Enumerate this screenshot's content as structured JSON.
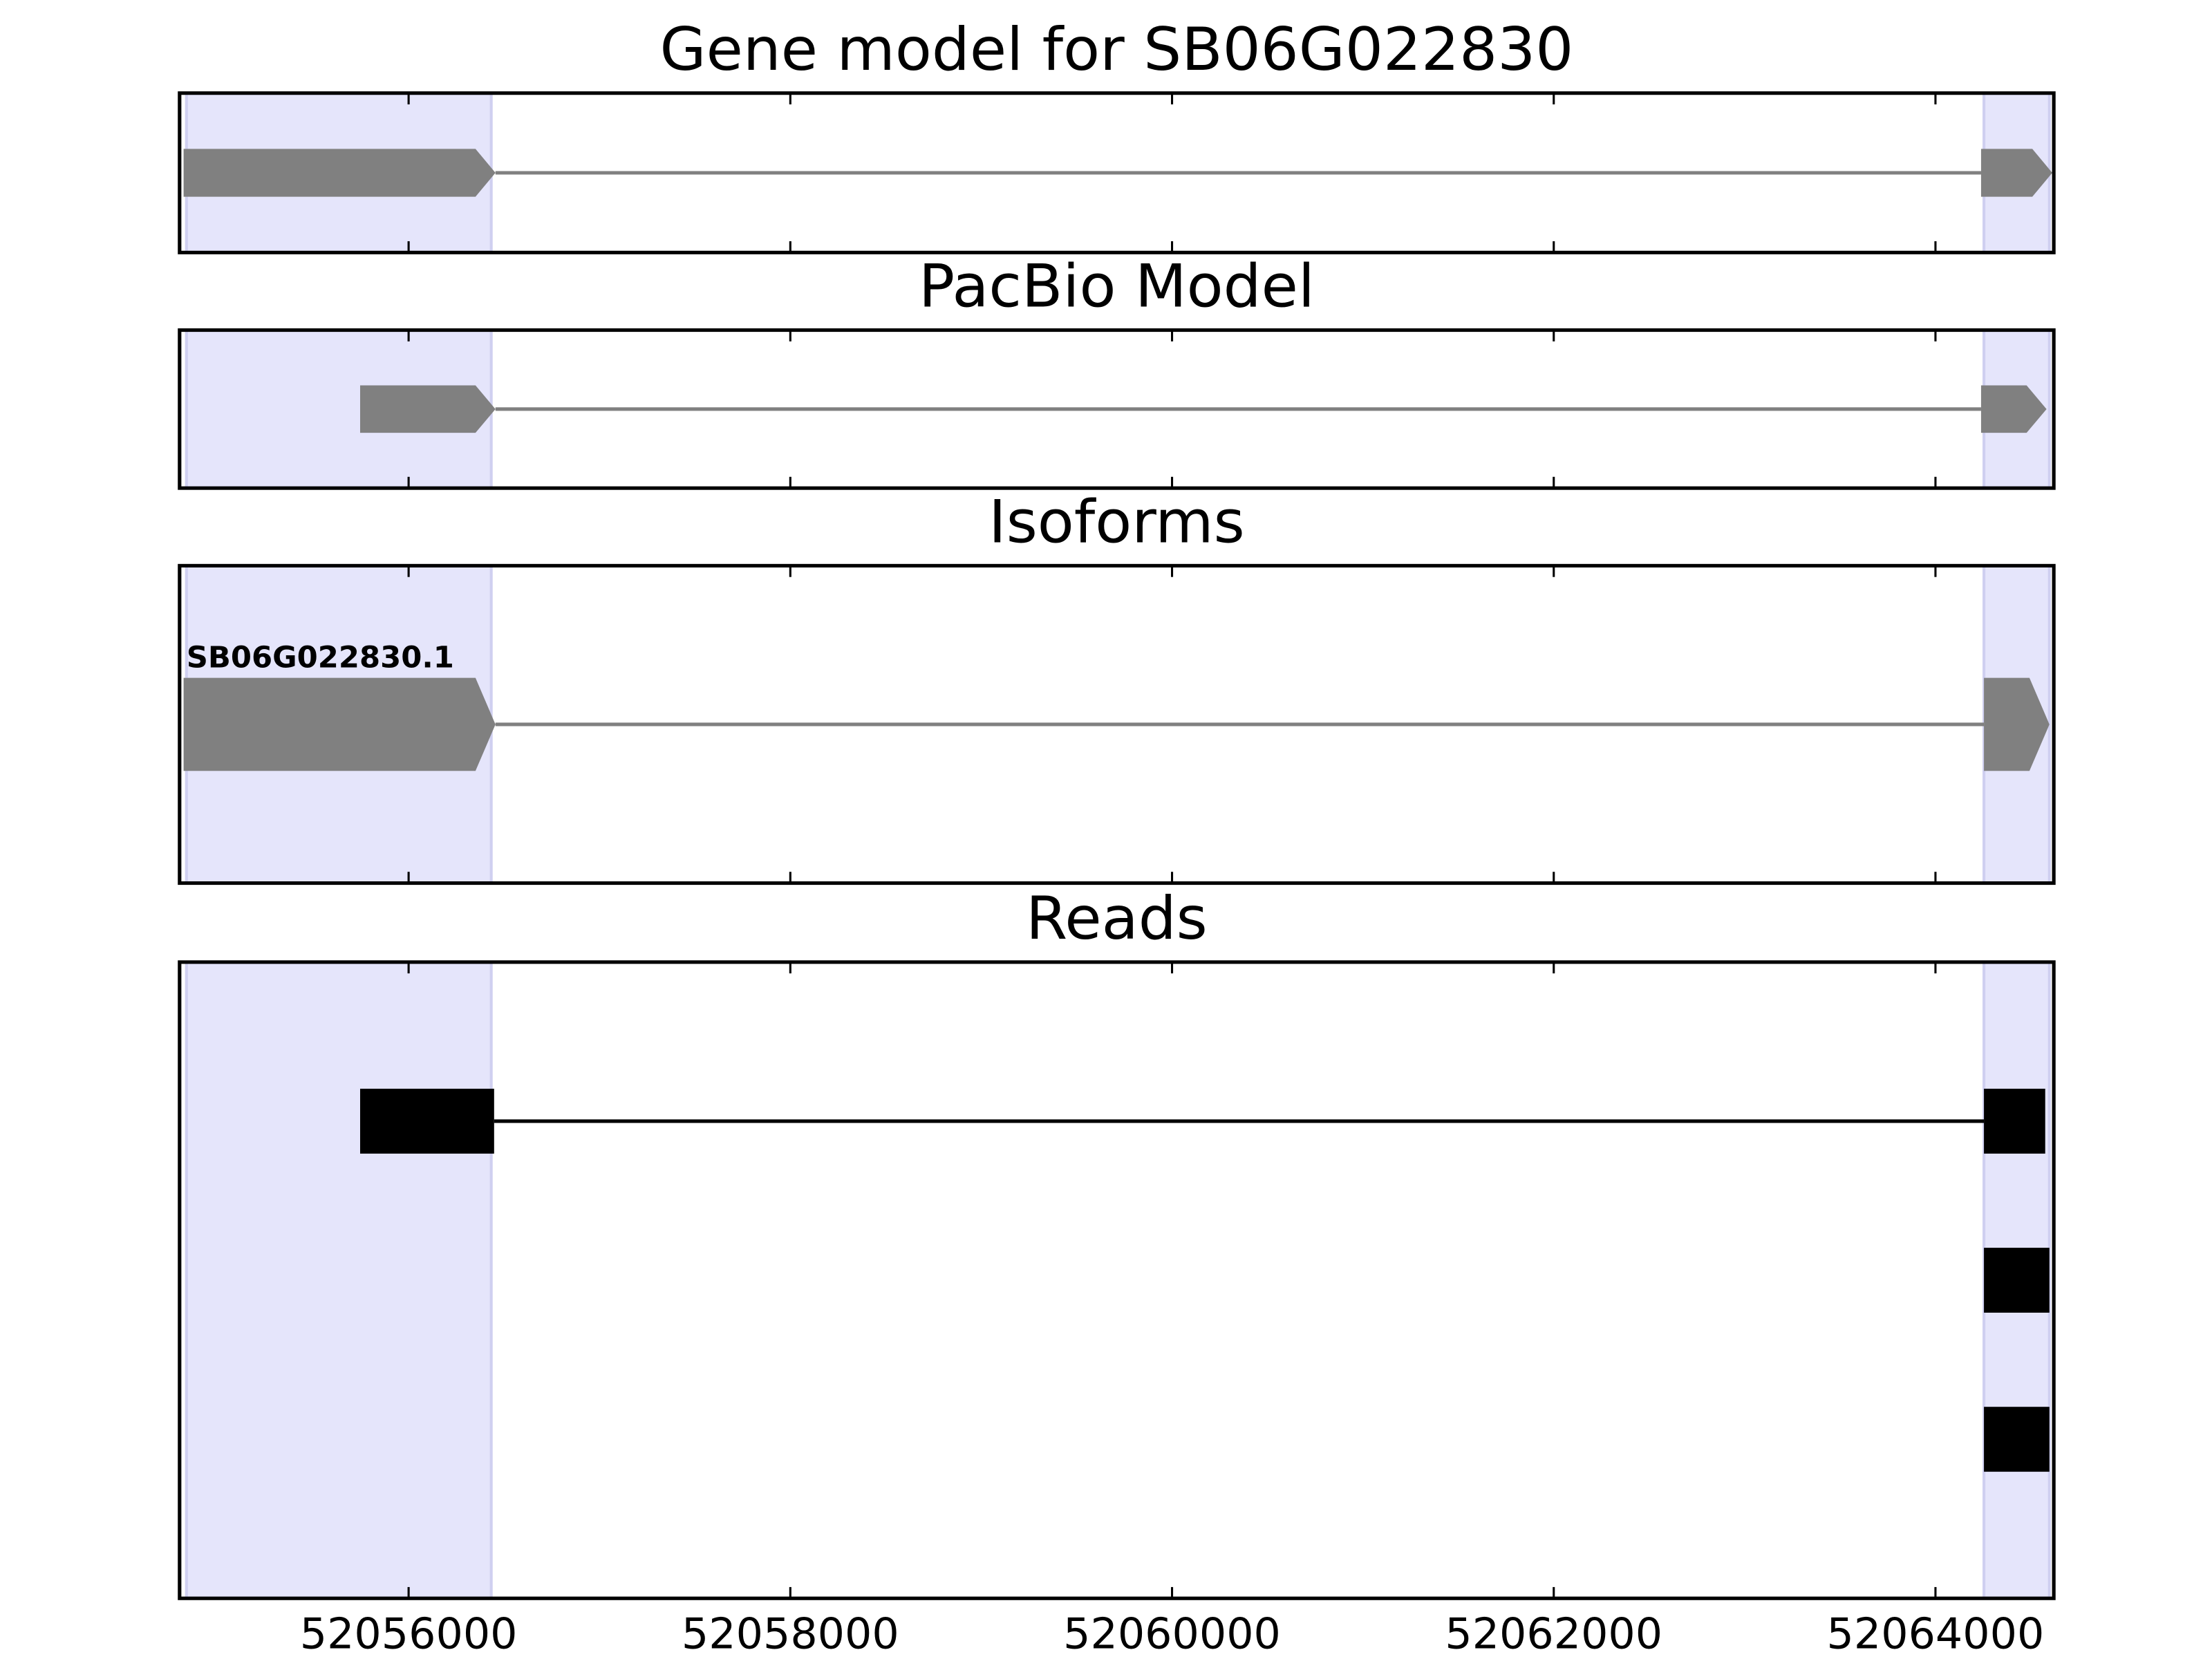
{
  "chart_data": [
    {
      "type": "gene",
      "title": "Gene model for SB06G022830",
      "color": "#808080",
      "xlim": [
        52054800,
        52064620
      ],
      "xticks": [
        52056000,
        52058000,
        52060000,
        52062000,
        52064000
      ],
      "shade_color": "#e5e5fb",
      "shaded_regions": [
        [
          52054836,
          52056433
        ],
        [
          52064254,
          52064597
        ]
      ],
      "features": [
        {
          "exons": [
            [
              52054821,
              52056455
            ],
            [
              52064239,
              52064612
            ]
          ]
        }
      ]
    },
    {
      "type": "gene",
      "title": "PacBio Model",
      "color": "#808080",
      "xlim": [
        52054800,
        52064620
      ],
      "xticks": [
        52056000,
        52058000,
        52060000,
        52062000,
        52064000
      ],
      "shade_color": "#e5e5fb",
      "shaded_regions": [
        [
          52054836,
          52056433
        ],
        [
          52064254,
          52064597
        ]
      ],
      "features": [
        {
          "exons": [
            [
              52055746,
              52056455
            ],
            [
              52064239,
              52064582
            ]
          ]
        }
      ]
    },
    {
      "type": "gene",
      "title": "Isoforms",
      "color": "#808080",
      "xlim": [
        52054800,
        52064620
      ],
      "xticks": [
        52056000,
        52058000,
        52060000,
        52062000,
        52064000
      ],
      "shade_color": "#e5e5fb",
      "shaded_regions": [
        [
          52054836,
          52056433
        ],
        [
          52064254,
          52064597
        ]
      ],
      "features": [
        {
          "label": "SB06G022830.1",
          "exons": [
            [
              52054821,
              52056455
            ],
            [
              52064254,
              52064597
            ]
          ]
        }
      ]
    },
    {
      "type": "reads",
      "title": "Reads",
      "color": "#000000",
      "xlim": [
        52054800,
        52064620
      ],
      "xticks": [
        52056000,
        52058000,
        52060000,
        52062000,
        52064000
      ],
      "shade_color": "#e5e5fb",
      "shaded_regions": [
        [
          52054836,
          52056433
        ],
        [
          52064254,
          52064597
        ]
      ],
      "features": [
        {
          "exons": [
            [
              52055746,
              52056448
            ],
            [
              52064254,
              52064575
            ]
          ]
        },
        {
          "exons": [
            [
              52064254,
              52064597
            ]
          ]
        },
        {
          "exons": [
            [
              52064254,
              52064597
            ]
          ]
        }
      ]
    }
  ]
}
